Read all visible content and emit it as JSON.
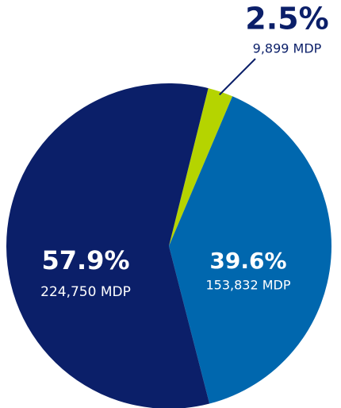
{
  "chart_data": {
    "type": "pie",
    "values": [
      2.5,
      39.6,
      57.9
    ],
    "value_labels": [
      "2.5%",
      "39.6%",
      "57.9%"
    ],
    "detail_labels": [
      "9,899 MDP",
      "153,832 MDP",
      "224,750 MDP"
    ],
    "colors": [
      "#b5d400",
      "#0067ae",
      "#0b1f69"
    ]
  }
}
